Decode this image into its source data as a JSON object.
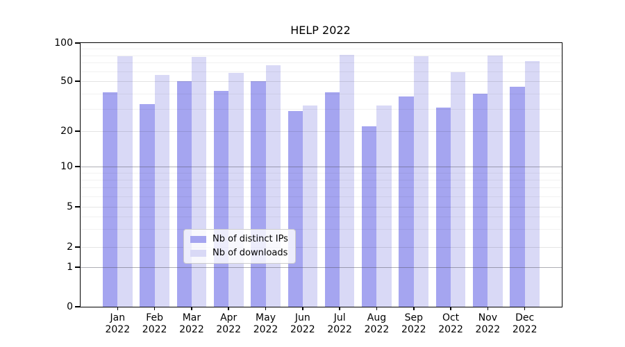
{
  "title": "HELP 2022",
  "chart_data": {
    "type": "bar",
    "title": "HELP 2022",
    "categories": [
      "Jan 2022",
      "Feb 2022",
      "Mar 2022",
      "Apr 2022",
      "May 2022",
      "Jun 2022",
      "Jul 2022",
      "Aug 2022",
      "Sep 2022",
      "Oct 2022",
      "Nov 2022",
      "Dec 2022"
    ],
    "series": [
      {
        "name": "Nb of distinct IPs",
        "color": "#a5a5f0",
        "values": [
          41,
          33,
          50,
          42,
          50,
          29,
          41,
          22,
          38,
          31,
          40,
          45
        ]
      },
      {
        "name": "Nb of downloads",
        "color": "#d9d9f6",
        "values": [
          79,
          56,
          78,
          58,
          67,
          32,
          81,
          32,
          79,
          59,
          80,
          72
        ]
      }
    ],
    "ylabel": "",
    "xlabel": "",
    "yscale": "symlog",
    "ylim": [
      0,
      100
    ],
    "yticks": [
      0,
      1,
      2,
      5,
      10,
      20,
      50,
      100
    ],
    "minor_gridlines": [
      3,
      4,
      6,
      7,
      8,
      9,
      30,
      40,
      60,
      70,
      80,
      90
    ],
    "grid": true,
    "legend_position": "lower center",
    "bar_group_width_ratio": 0.8
  }
}
